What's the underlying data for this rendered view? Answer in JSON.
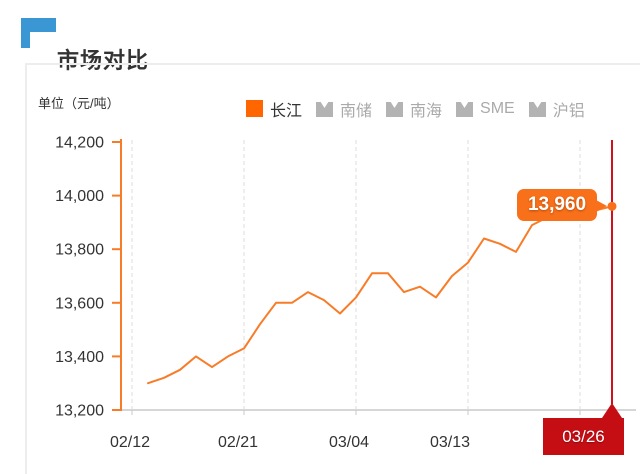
{
  "header": {
    "title": "市场对比"
  },
  "chart": {
    "unit_label": "单位（元/吨）"
  },
  "legend": {
    "items": [
      {
        "label": "长江",
        "active": true
      },
      {
        "label": "南储",
        "active": false
      },
      {
        "label": "南海",
        "active": false
      },
      {
        "label": "SME",
        "active": false
      },
      {
        "label": "沪铝",
        "active": false
      }
    ]
  },
  "tooltip": {
    "value_label": "13,960",
    "date_label": "03/26"
  },
  "colors": {
    "series_orange": "#f87c28",
    "tag_orange": "#f9701a",
    "legend_orange": "#ff6600",
    "pointer_red": "#d0101b",
    "tag_red": "#c50d14",
    "inactive_gray": "#b3b3b3",
    "inactive_text": "#aaaaaa",
    "accent_blue": "#3b97d3"
  },
  "chart_data": {
    "type": "line",
    "title": "市场对比",
    "unit": "元/吨",
    "legend_position": "top",
    "grid": "dashed-vertical",
    "x_tick_labels": [
      "02/12",
      "02/21",
      "03/04",
      "03/13",
      "03/26"
    ],
    "y_ticks": [
      {
        "label": "13,200",
        "value": 13200
      },
      {
        "label": "13,400",
        "value": 13400
      },
      {
        "label": "13,600",
        "value": 13600
      },
      {
        "label": "13,800",
        "value": 13800
      },
      {
        "label": "14,000",
        "value": 14000
      },
      {
        "label": "14,200",
        "value": 14200
      }
    ],
    "ylim": [
      13200,
      14200
    ],
    "series": [
      {
        "name": "长江",
        "color": "#f87c28",
        "values": [
          13300,
          13320,
          13350,
          13400,
          13360,
          13400,
          13430,
          13520,
          13600,
          13600,
          13640,
          13610,
          13560,
          13620,
          13710,
          13710,
          13640,
          13660,
          13620,
          13700,
          13750,
          13840,
          13820,
          13790,
          13890,
          13920,
          13910,
          13930,
          13945,
          13960
        ]
      }
    ],
    "inactive_series": [
      "南储",
      "南海",
      "SME",
      "沪铝"
    ],
    "highlight": {
      "value": 13960,
      "value_label": "13,960",
      "date": "03/26"
    }
  }
}
